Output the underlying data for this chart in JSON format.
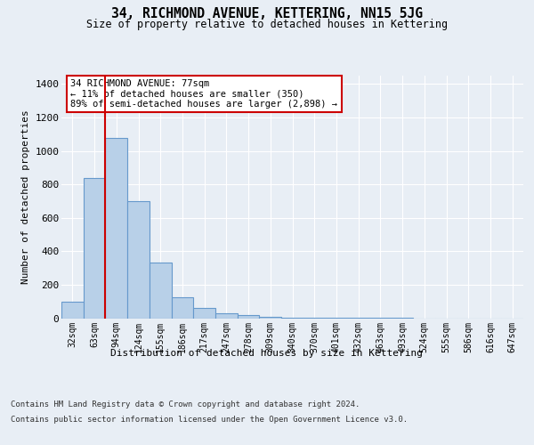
{
  "title": "34, RICHMOND AVENUE, KETTERING, NN15 5JG",
  "subtitle": "Size of property relative to detached houses in Kettering",
  "xlabel": "Distribution of detached houses by size in Kettering",
  "ylabel": "Number of detached properties",
  "bin_labels": [
    "32sqm",
    "63sqm",
    "94sqm",
    "124sqm",
    "155sqm",
    "186sqm",
    "217sqm",
    "247sqm",
    "278sqm",
    "309sqm",
    "340sqm",
    "370sqm",
    "401sqm",
    "432sqm",
    "463sqm",
    "493sqm",
    "524sqm",
    "555sqm",
    "586sqm",
    "616sqm",
    "647sqm"
  ],
  "bar_values": [
    100,
    840,
    1080,
    700,
    335,
    125,
    60,
    30,
    20,
    10,
    5,
    3,
    2,
    1,
    1,
    1,
    0,
    0,
    0,
    0,
    0
  ],
  "bar_color": "#b8d0e8",
  "bar_edge_color": "#6699cc",
  "bar_edge_width": 0.8,
  "property_sqm": 77,
  "annotation_text": "34 RICHMOND AVENUE: 77sqm\n← 11% of detached houses are smaller (350)\n89% of semi-detached houses are larger (2,898) →",
  "annotation_box_color": "#ffffff",
  "annotation_box_edge_color": "#cc0000",
  "ylim": [
    0,
    1450
  ],
  "yticks": [
    0,
    200,
    400,
    600,
    800,
    1000,
    1200,
    1400
  ],
  "footnote1": "Contains HM Land Registry data © Crown copyright and database right 2024.",
  "footnote2": "Contains public sector information licensed under the Open Government Licence v3.0.",
  "bg_color": "#e8eef5",
  "plot_bg_color": "#e8eef5",
  "grid_color": "#ffffff"
}
